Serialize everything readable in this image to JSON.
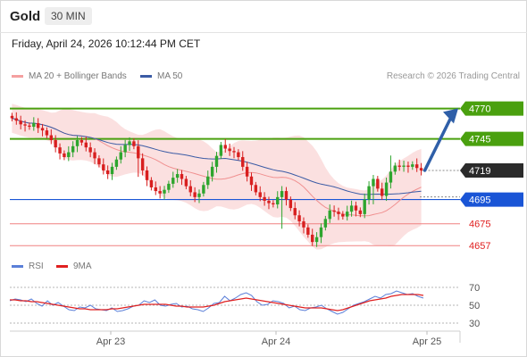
{
  "header": {
    "symbol": "Gold",
    "timeframe": "30 MIN"
  },
  "datetime": "Friday, April 24, 2026 10:12:44 PM CET",
  "legend": {
    "bollinger_label": "MA 20 + Bollinger Bands",
    "ma50_label": "MA 50",
    "copyright": "Research © 2026 Trading Central"
  },
  "rsi_legend": {
    "rsi_label": "RSI",
    "ma_label": "9MA"
  },
  "colors": {
    "up_candle": "#2ea52e",
    "down_candle": "#d81f1f",
    "bollinger_fill": "#fad6d6",
    "ma20": "#f09090",
    "ma50": "#3b5ba5",
    "resistance": "#4aa00f",
    "pivot": "#1a55d6",
    "support": "#f08080",
    "support_text": "#e02020",
    "current_price_bg": "#2b2b2b",
    "rsi": "#5b7fd8",
    "rsi_ma": "#e02020",
    "arrow": "#2f5fa8"
  },
  "chart_data": {
    "type": "candlestick",
    "x_labels": [
      "Apr 23",
      "Apr 24",
      "Apr 25"
    ],
    "ylim": [
      4652,
      4783
    ],
    "levels": [
      {
        "value": 4770,
        "label": "4770",
        "kind": "resistance"
      },
      {
        "value": 4745,
        "label": "4745",
        "kind": "resistance"
      },
      {
        "value": 4719,
        "label": "4719",
        "kind": "current"
      },
      {
        "value": 4695,
        "label": "4695",
        "kind": "pivot"
      },
      {
        "value": 4675,
        "label": "4675",
        "kind": "support"
      },
      {
        "value": 4657,
        "label": "4657",
        "kind": "support"
      }
    ],
    "close_prices": [
      4762,
      4760,
      4757,
      4756,
      4755,
      4758,
      4754,
      4752,
      4748,
      4744,
      4738,
      4733,
      4730,
      4734,
      4739,
      4744,
      4742,
      4738,
      4734,
      4729,
      4724,
      4719,
      4716,
      4722,
      4728,
      4734,
      4740,
      4743,
      4739,
      4729,
      4719,
      4711,
      4705,
      4702,
      4700,
      4703,
      4708,
      4713,
      4716,
      4712,
      4706,
      4701,
      4697,
      4700,
      4707,
      4714,
      4722,
      4731,
      4740,
      4737,
      4735,
      4734,
      4730,
      4722,
      4714,
      4707,
      4701,
      4697,
      4694,
      4692,
      4691,
      4697,
      4702,
      4695,
      4688,
      4682,
      4677,
      4672,
      4666,
      4660,
      4664,
      4672,
      4679,
      4686,
      4685,
      4683,
      4681,
      4685,
      4690,
      4686,
      4683,
      4695,
      4706,
      4712,
      4704,
      4698,
      4709,
      4718,
      4723,
      4722,
      4723,
      4722,
      4724,
      4721,
      4719
    ],
    "rsi": {
      "levels": [
        70,
        50,
        30
      ],
      "ylim": [
        20,
        80
      ],
      "values": [
        55,
        57,
        56,
        54,
        57,
        52,
        49,
        55,
        50,
        53,
        49,
        45,
        44,
        48,
        47,
        50,
        46,
        45,
        44,
        47,
        43,
        44,
        46,
        49,
        50,
        55,
        53,
        56,
        50,
        49,
        51,
        52,
        48,
        49,
        46,
        45,
        43,
        47,
        52,
        53,
        60,
        55,
        58,
        62,
        64,
        61,
        54,
        50,
        51,
        55,
        54,
        52,
        47,
        49,
        45,
        44,
        47,
        48,
        50,
        46,
        43,
        40,
        42,
        46,
        50,
        52,
        54,
        57,
        60,
        58,
        62,
        63,
        66,
        64,
        62,
        63,
        60,
        58
      ],
      "ma_values": [
        56,
        56,
        55,
        55,
        54,
        54,
        53,
        52,
        51,
        50,
        49,
        48,
        47,
        46,
        46,
        45,
        45,
        45,
        45,
        46,
        46,
        47,
        48,
        49,
        50,
        51,
        51,
        51,
        51,
        51,
        50,
        49,
        49,
        48,
        48,
        48,
        48,
        49,
        50,
        52,
        54,
        55,
        56,
        57,
        58,
        57,
        56,
        55,
        54,
        53,
        52,
        51,
        50,
        49,
        48,
        47,
        47,
        47,
        47,
        46,
        45,
        44,
        45,
        47,
        49,
        51,
        53,
        55,
        56,
        57,
        58,
        60,
        61,
        62,
        62,
        62,
        62,
        61
      ]
    }
  }
}
